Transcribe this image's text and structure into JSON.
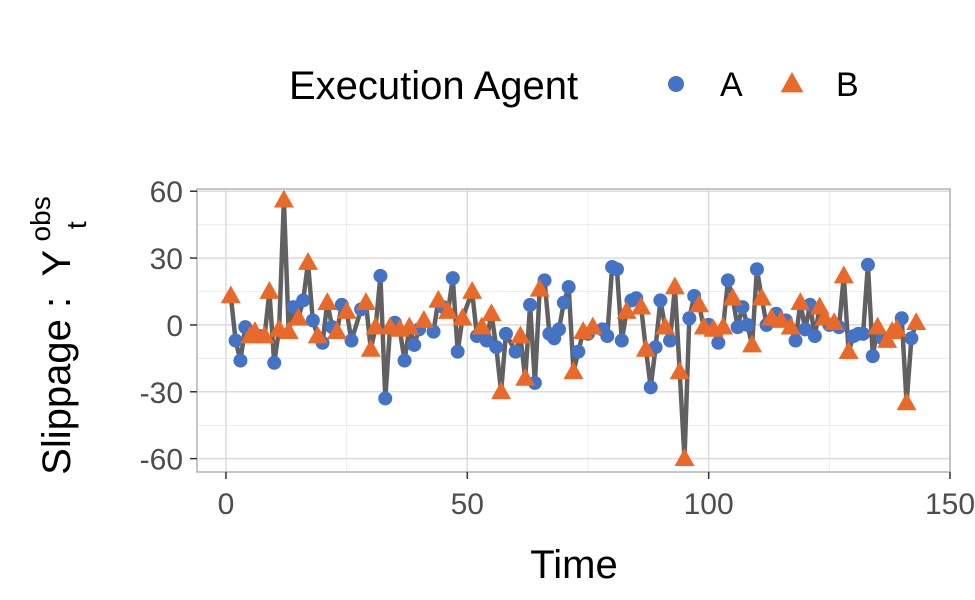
{
  "chart_data": {
    "type": "line",
    "title": "",
    "xlabel": "Time",
    "ylabel": "Slippage :",
    "ylabel_symbol": "Y",
    "ylabel_superscript": "obs",
    "ylabel_subscript": "t",
    "xlim": [
      -6,
      150
    ],
    "ylim": [
      -66,
      61
    ],
    "x_ticks": [
      0,
      50,
      100,
      150
    ],
    "x_tick_labels": [
      "0",
      "50",
      "100",
      "150"
    ],
    "y_ticks": [
      -60,
      -30,
      0,
      30,
      60
    ],
    "y_tick_labels": [
      "-60",
      "-30",
      "0",
      "30",
      "60"
    ],
    "grid": true,
    "legend": {
      "title": "Execution Agent",
      "position": "top",
      "entries": [
        {
          "label": "A",
          "marker": "circle",
          "color": "#4472C4"
        },
        {
          "label": "B",
          "marker": "triangle",
          "color": "#E8692A"
        }
      ]
    },
    "line_color": "#595959",
    "series": [
      {
        "name": "A",
        "marker": "circle",
        "color": "#4472C4",
        "x": [
          2,
          3,
          4,
          7,
          10,
          14,
          16,
          18,
          20,
          22,
          24,
          26,
          28,
          32,
          33,
          35,
          37,
          39,
          40,
          43,
          45,
          47,
          48,
          52,
          54,
          56,
          58,
          60,
          63,
          64,
          66,
          67,
          68,
          69,
          70,
          71,
          73,
          75,
          78,
          79,
          80,
          81,
          82,
          84,
          85,
          88,
          89,
          90,
          92,
          96,
          97,
          100,
          102,
          104,
          106,
          107,
          108,
          110,
          112,
          114,
          116,
          118,
          120,
          121,
          122,
          125,
          127,
          130,
          131,
          132,
          133,
          134,
          136,
          140,
          142
        ],
        "y": [
          -7,
          -16,
          -1,
          -5,
          -17,
          8,
          11,
          2,
          -8,
          -1,
          9,
          -7,
          7,
          22,
          -33,
          1,
          -16,
          -9,
          -2,
          -3,
          8,
          21,
          -12,
          -5,
          -7,
          -10,
          -4,
          -12,
          9,
          -26,
          20,
          -4,
          -6,
          -2,
          10,
          17,
          -12,
          -4,
          -2,
          -5,
          26,
          25,
          -7,
          11,
          12,
          -28,
          -10,
          11,
          -7,
          3,
          13,
          0,
          -8,
          20,
          -1,
          8,
          0,
          25,
          0,
          5,
          2,
          -7,
          -2,
          9,
          -5,
          0,
          -1,
          -5,
          -4,
          -4,
          27,
          -14,
          -6,
          3,
          -6
        ]
      },
      {
        "name": "B",
        "marker": "triangle",
        "color": "#E8692A",
        "x": [
          1,
          5,
          6,
          8,
          9,
          11,
          12,
          13,
          15,
          17,
          19,
          21,
          23,
          25,
          29,
          30,
          31,
          34,
          36,
          38,
          41,
          44,
          46,
          49,
          51,
          53,
          55,
          57,
          61,
          62,
          65,
          72,
          74,
          76,
          83,
          86,
          87,
          91,
          93,
          94,
          95,
          98,
          99,
          101,
          103,
          105,
          109,
          111,
          113,
          115,
          117,
          119,
          123,
          124,
          126,
          128,
          129,
          135,
          137,
          138,
          139,
          141,
          143
        ],
        "y": [
          13,
          -5,
          -3,
          -5,
          15,
          -2,
          56,
          -3,
          3,
          28,
          -5,
          10,
          -3,
          6,
          10,
          -11,
          -1,
          -1,
          -2,
          -1,
          2,
          11,
          6,
          3,
          15,
          -1,
          5,
          -30,
          -5,
          -24,
          16,
          -21,
          -3,
          -1,
          6,
          8,
          -11,
          -1,
          17,
          -21,
          -60,
          9,
          -1,
          -2,
          -1,
          12,
          -9,
          12,
          3,
          2,
          -1,
          10,
          8,
          3,
          1,
          22,
          -12,
          -1,
          -7,
          -3,
          -2,
          -35,
          1
        ]
      }
    ]
  }
}
